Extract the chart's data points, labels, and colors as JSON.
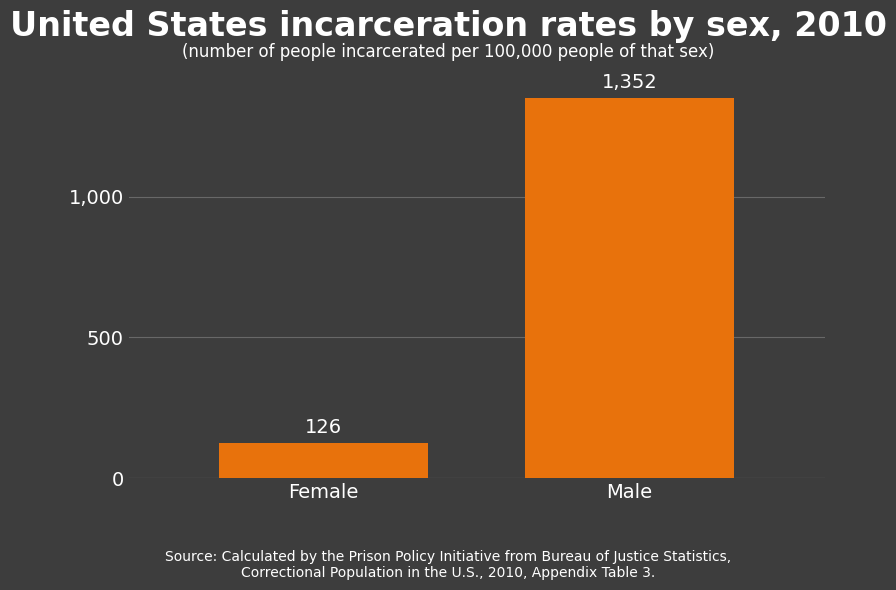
{
  "title": "United States incarceration rates by sex, 2010",
  "subtitle": "(number of people incarcerated per 100,000 people of that sex)",
  "categories": [
    "Female",
    "Male"
  ],
  "values": [
    126,
    1352
  ],
  "bar_color": "#E8720C",
  "background_color": "#3d3d3d",
  "text_color": "#FFFFFF",
  "grid_color": "#686868",
  "ylim": [
    0,
    1450
  ],
  "yticks": [
    0,
    500,
    1000
  ],
  "title_fontsize": 24,
  "subtitle_fontsize": 12,
  "label_fontsize": 14,
  "tick_fontsize": 14,
  "value_fontsize": 14,
  "source_text": "Source: Calculated by the Prison Policy Initiative from Bureau of Justice Statistics,\nCorrectional Population in the U.S., 2010, Appendix Table 3.",
  "source_fontsize": 10,
  "bar_positions": [
    0.28,
    0.72
  ],
  "bar_width": 0.3,
  "xlim": [
    0.0,
    1.0
  ]
}
